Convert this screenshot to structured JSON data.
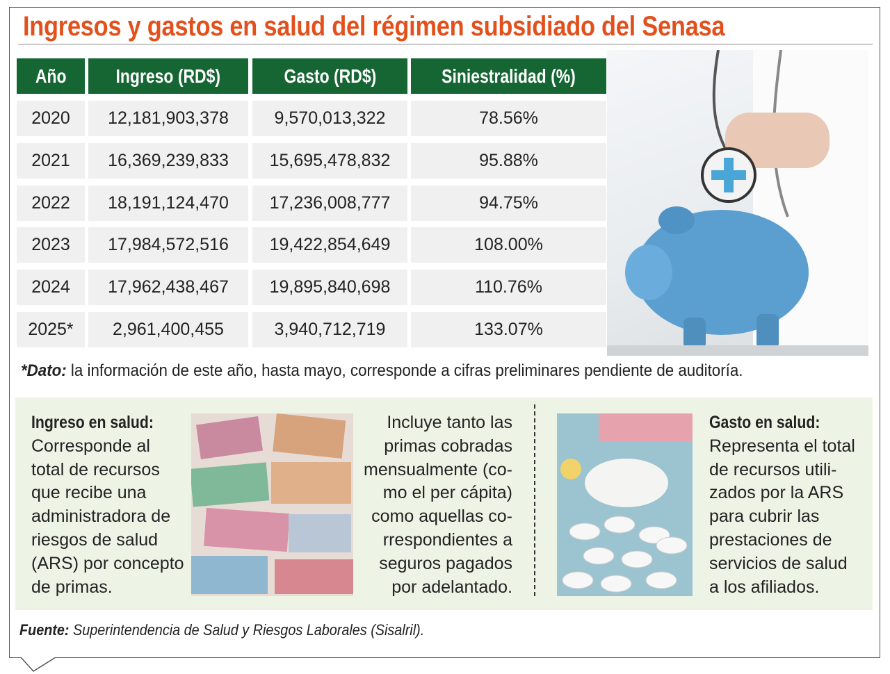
{
  "title": "Ingresos y gastos en salud del régimen subsidiado del Senasa",
  "colors": {
    "title": "#e2511d",
    "header_bg": "#166634",
    "row_bg": "#f0f0f0",
    "panel_bg": "#eef4e5"
  },
  "chart_data": {
    "type": "table",
    "columns": [
      "Año",
      "Ingreso (RD$)",
      "Gasto (RD$)",
      "Siniestralidad (%)"
    ],
    "rows": [
      [
        "2020",
        "12,181,903,378",
        "9,570,013,322",
        "78.56%"
      ],
      [
        "2021",
        "16,369,239,833",
        "15,695,478,832",
        "95.88%"
      ],
      [
        "2022",
        "18,191,124,470",
        "17,236,008,777",
        "94.75%"
      ],
      [
        "2023",
        "17,984,572,516",
        "19,422,854,649",
        "108.00%"
      ],
      [
        "2024",
        "17,962,438,467",
        "19,895,840,698",
        "110.76%"
      ],
      [
        "2025*",
        "2,961,400,455",
        "3,940,712,719",
        "133.07%"
      ]
    ]
  },
  "note": {
    "label": "*Dato:",
    "text": " la información de este año, hasta mayo, corresponde a cifras preliminares pendiente de auditoría."
  },
  "ingreso": {
    "heading": "Ingreso en salud:",
    "lines": [
      "Corresponde al",
      "total de recursos",
      "que recibe una",
      "administradora de",
      "riesgos de salud",
      "(ARS) por concepto",
      "de primas."
    ],
    "detail_lines": [
      "Incluye tanto las",
      "primas cobradas",
      "mensualmente (co-",
      "mo el per cápita)",
      "como aquellas co-",
      "rrespondientes a",
      "seguros pagados",
      "por adelantado."
    ]
  },
  "gasto": {
    "heading": "Gasto en salud:",
    "lines": [
      "Representa el total",
      "de recursos utili-",
      "zados por la ARS",
      "para cubrir las",
      "prestaciones de",
      "servicios de salud",
      "a los afiliados."
    ]
  },
  "source": {
    "label": "Fuente:",
    "text": " Superintendencia de Salud y Riesgos Laborales (Sisalril)."
  }
}
